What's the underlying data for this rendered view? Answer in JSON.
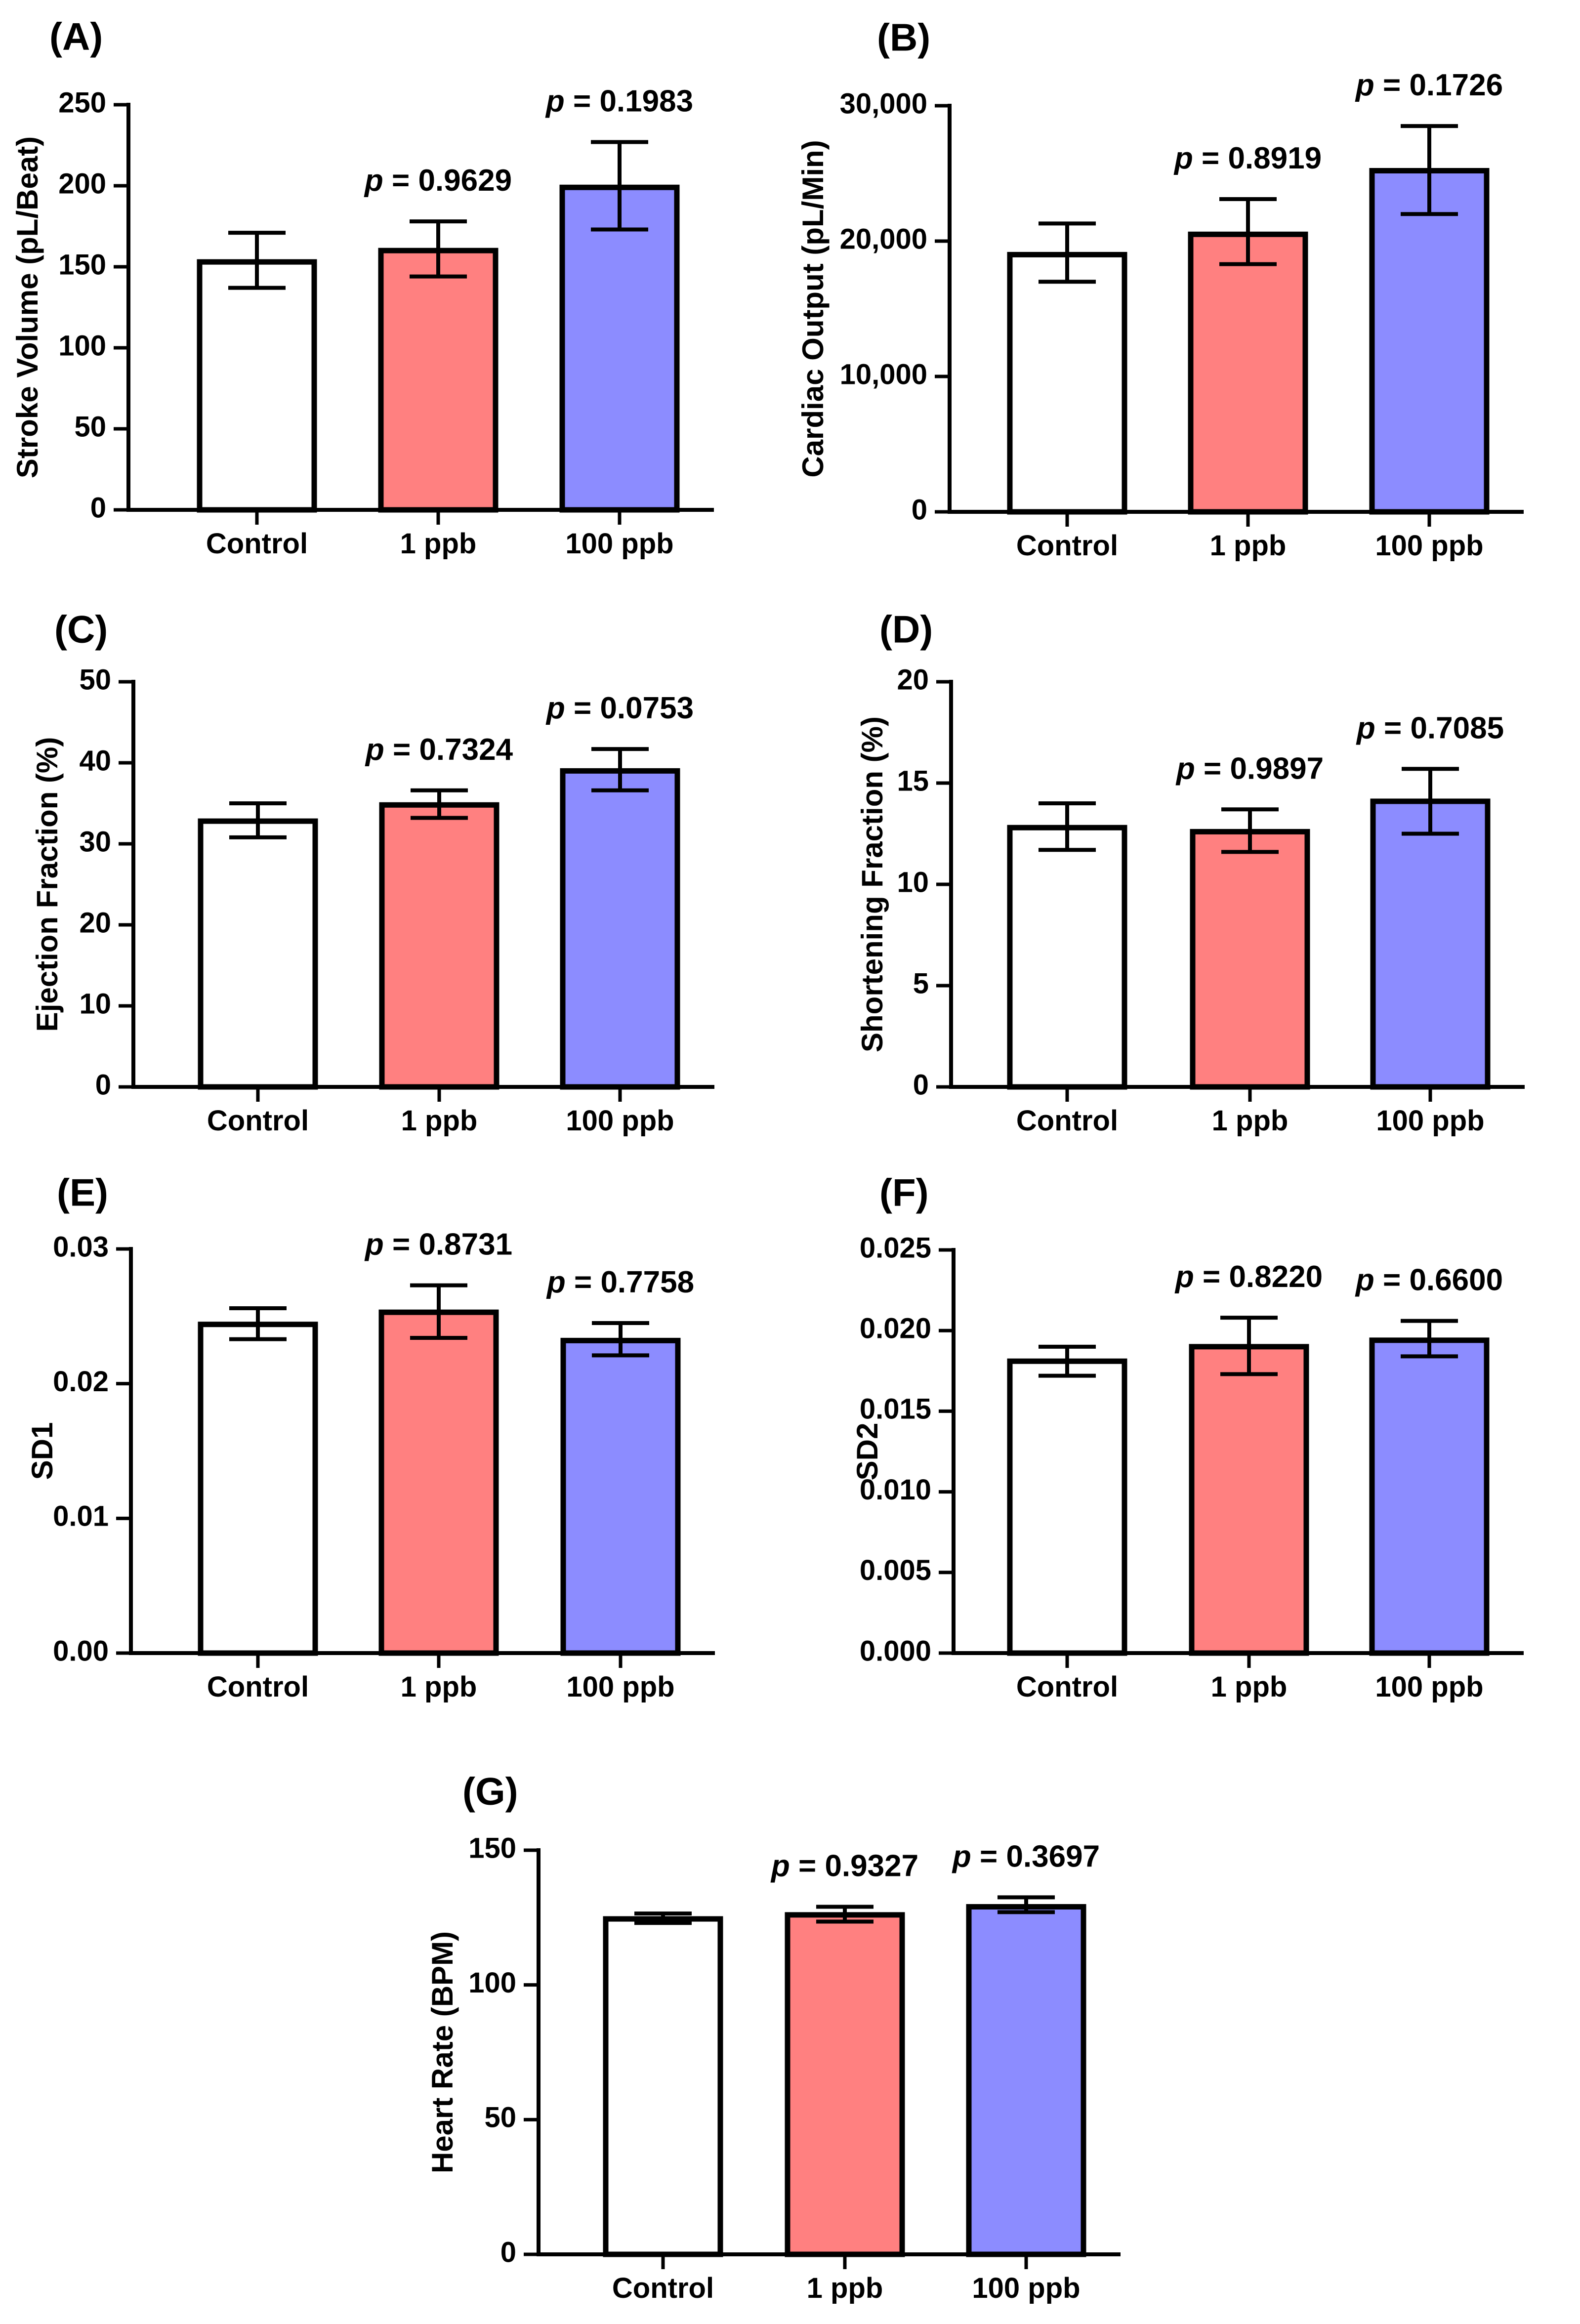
{
  "colors": {
    "control": "#ffffff",
    "low_dose": "#ff8080",
    "high_dose": "#8c8cff",
    "stroke": "#000000"
  },
  "chart_data": [
    {
      "panel": "(A)",
      "type": "bar",
      "title": "",
      "xlabel": "",
      "ylabel": "Stroke Volume (pL/Beat)",
      "categories": [
        "Control",
        "1 ppb",
        "100 ppb"
      ],
      "values": [
        153,
        160,
        199
      ],
      "errors": [
        [
          137,
          171
        ],
        [
          144,
          178
        ],
        [
          173,
          227
        ]
      ],
      "p_values": [
        null,
        "0.9629",
        "0.1983"
      ],
      "ylim": [
        0,
        250
      ],
      "ticks": [
        0,
        50,
        100,
        150,
        200,
        250
      ],
      "tick_labels": [
        "0",
        "50",
        "100",
        "150",
        "200",
        "250"
      ]
    },
    {
      "panel": "(B)",
      "type": "bar",
      "title": "",
      "xlabel": "",
      "ylabel": "Cardiac Output (pL/Min)",
      "categories": [
        "Control",
        "1 ppb",
        "100 ppb"
      ],
      "values": [
        19000,
        20500,
        25200
      ],
      "errors": [
        [
          17000,
          21300
        ],
        [
          18300,
          23100
        ],
        [
          22000,
          28500
        ]
      ],
      "p_values": [
        null,
        "0.8919",
        "0.1726"
      ],
      "ylim": [
        0,
        30000
      ],
      "ticks": [
        0,
        10000,
        20000,
        30000
      ],
      "tick_labels": [
        "0",
        "10,000",
        "20,000",
        "30,000"
      ]
    },
    {
      "panel": "(C)",
      "type": "bar",
      "title": "",
      "xlabel": "",
      "ylabel": "Ejection Fraction (%)",
      "categories": [
        "Control",
        "1 ppb",
        "100 ppb"
      ],
      "values": [
        32.8,
        34.8,
        39.0
      ],
      "errors": [
        [
          30.8,
          35.0
        ],
        [
          33.2,
          36.6
        ],
        [
          36.6,
          41.7
        ]
      ],
      "p_values": [
        null,
        "0.7324",
        "0.0753"
      ],
      "ylim": [
        0,
        50
      ],
      "ticks": [
        0,
        10,
        20,
        30,
        40,
        50
      ],
      "tick_labels": [
        "0",
        "10",
        "20",
        "30",
        "40",
        "50"
      ]
    },
    {
      "panel": "(D)",
      "type": "bar",
      "title": "",
      "xlabel": "",
      "ylabel": "Shortening Fraction (%)",
      "categories": [
        "Control",
        "1 ppb",
        "100 ppb"
      ],
      "values": [
        12.8,
        12.6,
        14.1
      ],
      "errors": [
        [
          11.7,
          14.0
        ],
        [
          11.6,
          13.7
        ],
        [
          12.5,
          15.7
        ]
      ],
      "p_values": [
        null,
        "0.9897",
        "0.7085"
      ],
      "ylim": [
        0,
        20
      ],
      "ticks": [
        0,
        5,
        10,
        15,
        20
      ],
      "tick_labels": [
        "0",
        "5",
        "10",
        "15",
        "20"
      ]
    },
    {
      "panel": "(E)",
      "type": "bar",
      "title": "",
      "xlabel": "",
      "ylabel": "SD1",
      "categories": [
        "Control",
        "1 ppb",
        "100 ppb"
      ],
      "values": [
        0.0244,
        0.0253,
        0.0232
      ],
      "errors": [
        [
          0.0233,
          0.0256
        ],
        [
          0.0234,
          0.0273
        ],
        [
          0.0221,
          0.0245
        ]
      ],
      "p_values": [
        null,
        "0.8731",
        "0.7758"
      ],
      "ylim": [
        0,
        0.03
      ],
      "ticks": [
        0,
        0.01,
        0.02,
        0.03
      ],
      "tick_labels": [
        "0.00",
        "0.01",
        "0.02",
        "0.03"
      ]
    },
    {
      "panel": "(F)",
      "type": "bar",
      "title": "",
      "xlabel": "",
      "ylabel": "SD2",
      "categories": [
        "Control",
        "1 ppb",
        "100 ppb"
      ],
      "values": [
        0.0181,
        0.019,
        0.0194
      ],
      "errors": [
        [
          0.0172,
          0.019
        ],
        [
          0.0173,
          0.0208
        ],
        [
          0.0184,
          0.0206
        ]
      ],
      "p_values": [
        null,
        "0.8220",
        "0.6600"
      ],
      "ylim": [
        0,
        0.025
      ],
      "ticks": [
        0,
        0.005,
        0.01,
        0.015,
        0.02,
        0.025
      ],
      "tick_labels": [
        "0.000",
        "0.005",
        "0.010",
        "0.015",
        "0.020",
        "0.025"
      ]
    },
    {
      "panel": "(G)",
      "type": "bar",
      "title": "",
      "xlabel": "",
      "ylabel": "Heart  Rate (BPM)",
      "categories": [
        "Control",
        "1 ppb",
        "100 ppb"
      ],
      "values": [
        124.5,
        126,
        129
      ],
      "errors": [
        [
          123,
          126.5
        ],
        [
          123.5,
          129
        ],
        [
          127,
          132.5
        ]
      ],
      "p_values": [
        null,
        "0.9327",
        "0.3697"
      ],
      "ylim": [
        0,
        150
      ],
      "ticks": [
        0,
        50,
        100,
        150
      ],
      "tick_labels": [
        "0",
        "50",
        "100",
        "150"
      ]
    }
  ]
}
